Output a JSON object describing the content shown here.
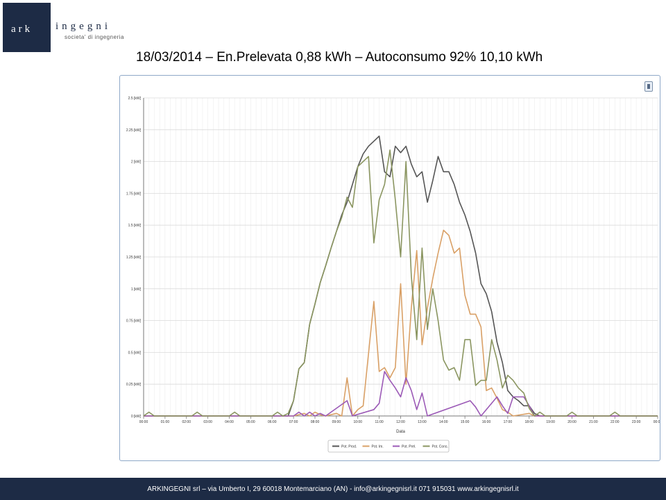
{
  "logo": {
    "ark": "ark",
    "ingegni": "ingegni",
    "tagline": "societa' di ingegneria"
  },
  "slide": {
    "title": "18/03/2014 – En.Prelevata 0,88 kWh – Autoconsumo 92% 10,10 kWh"
  },
  "footer": {
    "text": "ARKINGEGNI srl – via Umberto I, 29 60018 Montemarciano (AN) - info@arkingegnisrl.it 071 915031 www.arkingegnisrl.it"
  },
  "chart_data": {
    "type": "line",
    "xlabel": "Data",
    "ylabel": "",
    "xlim": [
      0,
      24
    ],
    "ylim": [
      0,
      2.5
    ],
    "grid": true,
    "legend_position": "bottom",
    "y_ticks": [
      {
        "value": 0,
        "label": "0 [kW]"
      },
      {
        "value": 0.25,
        "label": "0.25 [kW]"
      },
      {
        "value": 0.5,
        "label": "0.5 [kW]"
      },
      {
        "value": 0.75,
        "label": "0.75 [kW]"
      },
      {
        "value": 1,
        "label": "1 [kW]"
      },
      {
        "value": 1.25,
        "label": "1.25 [kW]"
      },
      {
        "value": 1.5,
        "label": "1.5 [kW]"
      },
      {
        "value": 1.75,
        "label": "1.75 [kW]"
      },
      {
        "value": 2,
        "label": "2 [kW]"
      },
      {
        "value": 2.25,
        "label": "2.25 [kW]"
      },
      {
        "value": 2.5,
        "label": "2.5 [kW]"
      }
    ],
    "x_ticks": [
      {
        "value": 0,
        "label": "00:00"
      },
      {
        "value": 1,
        "label": "01:00"
      },
      {
        "value": 2,
        "label": "02:00"
      },
      {
        "value": 3,
        "label": "03:00"
      },
      {
        "value": 4,
        "label": "04:00"
      },
      {
        "value": 5,
        "label": "05:00"
      },
      {
        "value": 6,
        "label": "06:00"
      },
      {
        "value": 7,
        "label": "07:00"
      },
      {
        "value": 8,
        "label": "08:00"
      },
      {
        "value": 9,
        "label": "09:00"
      },
      {
        "value": 10,
        "label": "10:00"
      },
      {
        "value": 11,
        "label": "11:00"
      },
      {
        "value": 12,
        "label": "12:00"
      },
      {
        "value": 13,
        "label": "13:00"
      },
      {
        "value": 14,
        "label": "14:00"
      },
      {
        "value": 15,
        "label": "15:00"
      },
      {
        "value": 16,
        "label": "16:00"
      },
      {
        "value": 17,
        "label": "17:00"
      },
      {
        "value": 18,
        "label": "18:00"
      },
      {
        "value": 19,
        "label": "19:00"
      },
      {
        "value": 20,
        "label": "20:00"
      },
      {
        "value": 21,
        "label": "21:00"
      },
      {
        "value": 22,
        "label": "22:00"
      },
      {
        "value": 23,
        "label": "23:00"
      },
      {
        "value": 24,
        "label": "00:00"
      }
    ],
    "series": [
      {
        "name": "Pot. Prod.",
        "color": "#555555",
        "points": [
          [
            0,
            0
          ],
          [
            6.75,
            0
          ],
          [
            7,
            0.12
          ],
          [
            7.25,
            0.37
          ],
          [
            7.5,
            0.42
          ],
          [
            7.75,
            0.72
          ],
          [
            8,
            0.88
          ],
          [
            8.25,
            1.05
          ],
          [
            8.5,
            1.18
          ],
          [
            8.75,
            1.32
          ],
          [
            9,
            1.45
          ],
          [
            9.25,
            1.58
          ],
          [
            9.5,
            1.68
          ],
          [
            9.75,
            1.82
          ],
          [
            10,
            1.96
          ],
          [
            10.25,
            2.06
          ],
          [
            10.5,
            2.12
          ],
          [
            10.75,
            2.16
          ],
          [
            11,
            2.2
          ],
          [
            11.25,
            1.92
          ],
          [
            11.5,
            1.88
          ],
          [
            11.75,
            2.12
          ],
          [
            12,
            2.07
          ],
          [
            12.25,
            2.12
          ],
          [
            12.5,
            1.98
          ],
          [
            12.75,
            1.88
          ],
          [
            13,
            1.92
          ],
          [
            13.25,
            1.68
          ],
          [
            13.5,
            1.85
          ],
          [
            13.75,
            2.04
          ],
          [
            14,
            1.92
          ],
          [
            14.25,
            1.92
          ],
          [
            14.5,
            1.82
          ],
          [
            14.75,
            1.68
          ],
          [
            15,
            1.58
          ],
          [
            15.25,
            1.45
          ],
          [
            15.5,
            1.28
          ],
          [
            15.75,
            1.04
          ],
          [
            16,
            0.96
          ],
          [
            16.25,
            0.82
          ],
          [
            16.5,
            0.58
          ],
          [
            16.75,
            0.42
          ],
          [
            17,
            0.2
          ],
          [
            17.25,
            0.15
          ],
          [
            17.5,
            0.12
          ],
          [
            17.75,
            0.08
          ],
          [
            18,
            0.08
          ],
          [
            18.25,
            0.02
          ],
          [
            18.5,
            0
          ],
          [
            24,
            0
          ]
        ]
      },
      {
        "name": "Pot. Im.",
        "color": "#d9a066",
        "points": [
          [
            0,
            0
          ],
          [
            7,
            0
          ],
          [
            7.5,
            0.02
          ],
          [
            7.75,
            0
          ],
          [
            8,
            0.03
          ],
          [
            8.25,
            0.01
          ],
          [
            8.5,
            0
          ],
          [
            9,
            0.02
          ],
          [
            9.25,
            0
          ],
          [
            9.5,
            0.3
          ],
          [
            9.75,
            0
          ],
          [
            10,
            0.05
          ],
          [
            10.25,
            0.08
          ],
          [
            10.75,
            0.9
          ],
          [
            11,
            0.35
          ],
          [
            11.25,
            0.38
          ],
          [
            11.5,
            0.3
          ],
          [
            11.75,
            0.38
          ],
          [
            12,
            1.04
          ],
          [
            12.25,
            0.25
          ],
          [
            12.5,
            0.85
          ],
          [
            12.75,
            1.3
          ],
          [
            13,
            0.56
          ],
          [
            13.25,
            0.85
          ],
          [
            13.5,
            1.08
          ],
          [
            13.75,
            1.28
          ],
          [
            14,
            1.46
          ],
          [
            14.25,
            1.42
          ],
          [
            14.5,
            1.28
          ],
          [
            14.75,
            1.32
          ],
          [
            15,
            0.95
          ],
          [
            15.25,
            0.8
          ],
          [
            15.5,
            0.8
          ],
          [
            15.75,
            0.7
          ],
          [
            16,
            0.2
          ],
          [
            16.25,
            0.22
          ],
          [
            16.5,
            0.14
          ],
          [
            16.75,
            0.05
          ],
          [
            17,
            0.03
          ],
          [
            17.25,
            0
          ],
          [
            18,
            0.02
          ],
          [
            18.25,
            0
          ],
          [
            24,
            0
          ]
        ]
      },
      {
        "name": "Pot. Prel.",
        "color": "#9b59b6",
        "points": [
          [
            0,
            0
          ],
          [
            7,
            0
          ],
          [
            7.25,
            0.03
          ],
          [
            7.5,
            0
          ],
          [
            7.75,
            0.03
          ],
          [
            8,
            0
          ],
          [
            8.25,
            0.02
          ],
          [
            8.5,
            0
          ],
          [
            9.5,
            0.12
          ],
          [
            9.75,
            0
          ],
          [
            10.75,
            0.05
          ],
          [
            11,
            0.1
          ],
          [
            11.25,
            0.35
          ],
          [
            11.5,
            0.28
          ],
          [
            11.75,
            0.22
          ],
          [
            12,
            0.15
          ],
          [
            12.25,
            0.3
          ],
          [
            12.5,
            0.2
          ],
          [
            12.75,
            0.05
          ],
          [
            13,
            0.18
          ],
          [
            13.25,
            0
          ],
          [
            15.25,
            0.12
          ],
          [
            15.5,
            0.07
          ],
          [
            15.75,
            0
          ],
          [
            16.5,
            0.15
          ],
          [
            16.75,
            0.08
          ],
          [
            17,
            0.02
          ],
          [
            17.25,
            0.15
          ],
          [
            17.5,
            0.15
          ],
          [
            17.75,
            0.15
          ],
          [
            18,
            0.08
          ],
          [
            18.25,
            0
          ],
          [
            24,
            0
          ]
        ]
      },
      {
        "name": "Pot. Cons.",
        "color": "#8a9560",
        "points": [
          [
            0,
            0
          ],
          [
            0.25,
            0.03
          ],
          [
            0.5,
            0
          ],
          [
            2.25,
            0
          ],
          [
            2.5,
            0.03
          ],
          [
            2.75,
            0
          ],
          [
            4,
            0
          ],
          [
            4.25,
            0.03
          ],
          [
            4.5,
            0
          ],
          [
            6,
            0
          ],
          [
            6.25,
            0.03
          ],
          [
            6.5,
            0
          ],
          [
            6.75,
            0.02
          ],
          [
            7,
            0.12
          ],
          [
            7.25,
            0.37
          ],
          [
            7.5,
            0.42
          ],
          [
            7.75,
            0.72
          ],
          [
            8,
            0.88
          ],
          [
            8.25,
            1.05
          ],
          [
            8.5,
            1.18
          ],
          [
            8.75,
            1.32
          ],
          [
            9,
            1.45
          ],
          [
            9.25,
            1.56
          ],
          [
            9.5,
            1.72
          ],
          [
            9.75,
            1.64
          ],
          [
            10,
            1.96
          ],
          [
            10.25,
            2.0
          ],
          [
            10.5,
            2.04
          ],
          [
            10.75,
            1.36
          ],
          [
            11,
            1.7
          ],
          [
            11.25,
            1.82
          ],
          [
            11.5,
            2.09
          ],
          [
            11.75,
            1.7
          ],
          [
            12,
            1.25
          ],
          [
            12.25,
            2.0
          ],
          [
            12.5,
            1.1
          ],
          [
            12.75,
            0.6
          ],
          [
            13,
            1.32
          ],
          [
            13.25,
            0.68
          ],
          [
            13.5,
            1.0
          ],
          [
            13.75,
            0.75
          ],
          [
            14,
            0.44
          ],
          [
            14.25,
            0.36
          ],
          [
            14.5,
            0.38
          ],
          [
            14.75,
            0.28
          ],
          [
            15,
            0.6
          ],
          [
            15.25,
            0.6
          ],
          [
            15.5,
            0.24
          ],
          [
            15.75,
            0.28
          ],
          [
            16,
            0.28
          ],
          [
            16.25,
            0.6
          ],
          [
            16.5,
            0.44
          ],
          [
            16.75,
            0.22
          ],
          [
            17,
            0.32
          ],
          [
            17.25,
            0.28
          ],
          [
            17.5,
            0.22
          ],
          [
            17.75,
            0.18
          ],
          [
            18,
            0.06
          ],
          [
            18.25,
            0
          ],
          [
            18.5,
            0.03
          ],
          [
            18.75,
            0
          ],
          [
            19.75,
            0
          ],
          [
            20,
            0.03
          ],
          [
            20.25,
            0
          ],
          [
            21.75,
            0
          ],
          [
            22,
            0.03
          ],
          [
            22.25,
            0
          ],
          [
            24,
            0
          ]
        ]
      }
    ]
  }
}
